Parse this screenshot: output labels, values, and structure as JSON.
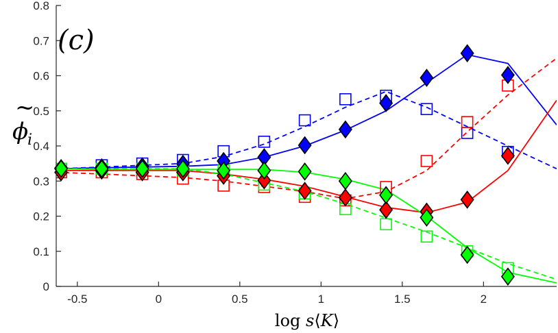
{
  "chart_data": {
    "type": "line",
    "title": "",
    "panel_label": "(c)",
    "xlabel": "log s⟨K⟩",
    "xlabel_parts": {
      "prefix": "log ",
      "s": "s",
      "open": "⟨",
      "K": "K",
      "close": "⟩"
    },
    "ylabel": "φ̃_i",
    "ylabel_parts": {
      "tilde": "~",
      "phi": "ϕ",
      "sub": "i"
    },
    "xlim": [
      -0.63,
      2.45
    ],
    "ylim": [
      0,
      0.8
    ],
    "xticks": [
      -0.5,
      0,
      0.5,
      1,
      1.5,
      2
    ],
    "xtick_labels": [
      "-0.5",
      "0",
      "0.5",
      "1",
      "1.5",
      "2"
    ],
    "yticks": [
      0,
      0.1,
      0.2,
      0.3,
      0.4,
      0.5,
      0.6,
      0.7,
      0.8
    ],
    "ytick_labels": [
      "0",
      "0.1",
      "0.2",
      "0.3",
      "0.4",
      "0.5",
      "0.6",
      "0.7",
      "0.8"
    ],
    "grid": false,
    "colors": {
      "blue": "#0000ff",
      "red": "#ff0000",
      "green": "#00ff00",
      "blue_marker": "#0000ff",
      "red_marker": "#ff0000",
      "green_marker": "#00ff00"
    },
    "series": [
      {
        "name": "blue solid",
        "color": "blue",
        "style": "solid",
        "x": [
          -0.63,
          -0.35,
          -0.1,
          0.15,
          0.4,
          0.65,
          0.9,
          1.15,
          1.4,
          1.65,
          1.9,
          2.15,
          2.45
        ],
        "y": [
          0.335,
          0.338,
          0.34,
          0.342,
          0.347,
          0.368,
          0.4,
          0.445,
          0.5,
          0.58,
          0.66,
          0.635,
          0.46
        ]
      },
      {
        "name": "blue dashed",
        "color": "blue",
        "style": "dashed",
        "x": [
          -0.63,
          -0.35,
          -0.1,
          0.15,
          0.4,
          0.65,
          0.9,
          1.15,
          1.4,
          1.65,
          1.9,
          2.15,
          2.45
        ],
        "y": [
          0.335,
          0.34,
          0.345,
          0.35,
          0.37,
          0.405,
          0.455,
          0.51,
          0.555,
          0.51,
          0.455,
          0.4,
          0.335
        ]
      },
      {
        "name": "red solid",
        "color": "red",
        "style": "solid",
        "x": [
          -0.63,
          -0.35,
          -0.1,
          0.15,
          0.4,
          0.65,
          0.9,
          1.15,
          1.4,
          1.65,
          1.9,
          2.15,
          2.45
        ],
        "y": [
          0.33,
          0.33,
          0.33,
          0.33,
          0.32,
          0.305,
          0.285,
          0.255,
          0.225,
          0.21,
          0.24,
          0.33,
          0.53
        ]
      },
      {
        "name": "red dashed",
        "color": "red",
        "style": "dashed",
        "x": [
          -0.63,
          -0.35,
          -0.1,
          0.15,
          0.4,
          0.65,
          0.9,
          1.15,
          1.4,
          1.65,
          1.9,
          2.15,
          2.45
        ],
        "y": [
          0.325,
          0.32,
          0.315,
          0.31,
          0.3,
          0.285,
          0.27,
          0.25,
          0.27,
          0.33,
          0.44,
          0.545,
          0.65
        ]
      },
      {
        "name": "green solid",
        "color": "green",
        "style": "solid",
        "x": [
          -0.63,
          -0.35,
          -0.1,
          0.15,
          0.4,
          0.65,
          0.9,
          1.15,
          1.4,
          1.65,
          1.9,
          2.15,
          2.45
        ],
        "y": [
          0.335,
          0.333,
          0.333,
          0.333,
          0.333,
          0.333,
          0.325,
          0.305,
          0.275,
          0.2,
          0.11,
          0.04,
          0.01
        ]
      },
      {
        "name": "green dashed",
        "color": "green",
        "style": "dashed",
        "x": [
          -0.63,
          -0.35,
          -0.1,
          0.15,
          0.4,
          0.65,
          0.9,
          1.15,
          1.4,
          1.65,
          1.9,
          2.15,
          2.45
        ],
        "y": [
          0.335,
          0.335,
          0.335,
          0.335,
          0.32,
          0.295,
          0.27,
          0.235,
          0.195,
          0.155,
          0.11,
          0.065,
          0.02
        ]
      }
    ],
    "markers": {
      "diamonds": [
        {
          "color": "blue",
          "x": [
            -0.6,
            -0.35,
            -0.1,
            0.15,
            0.4,
            0.65,
            0.9,
            1.15,
            1.4,
            1.65,
            1.9,
            2.15
          ],
          "y": [
            0.337,
            0.339,
            0.342,
            0.349,
            0.357,
            0.368,
            0.402,
            0.447,
            0.522,
            0.594,
            0.664,
            0.602
          ]
        },
        {
          "color": "red",
          "x": [
            -0.6,
            -0.35,
            -0.1,
            0.15,
            0.4,
            0.65,
            0.9,
            1.15,
            1.4,
            1.65,
            1.9,
            2.15
          ],
          "y": [
            0.325,
            0.33,
            0.325,
            0.325,
            0.315,
            0.302,
            0.272,
            0.253,
            0.218,
            0.213,
            0.247,
            0.372
          ]
        },
        {
          "color": "green",
          "x": [
            -0.6,
            -0.35,
            -0.1,
            0.15,
            0.4,
            0.65,
            0.9,
            1.15,
            1.4,
            1.65,
            1.9,
            2.15
          ],
          "y": [
            0.335,
            0.335,
            0.335,
            0.335,
            0.33,
            0.33,
            0.327,
            0.3,
            0.26,
            0.196,
            0.09,
            0.028
          ]
        }
      ],
      "squares": [
        {
          "color": "blue",
          "x": [
            -0.6,
            -0.35,
            -0.1,
            0.15,
            0.4,
            0.65,
            0.9,
            1.15,
            1.4,
            1.65,
            1.9,
            2.15
          ],
          "y": [
            0.335,
            0.345,
            0.35,
            0.36,
            0.385,
            0.412,
            0.473,
            0.533,
            0.543,
            0.505,
            0.437,
            0.383
          ]
        },
        {
          "color": "red",
          "x": [
            -0.6,
            -0.35,
            -0.1,
            0.15,
            0.4,
            0.65,
            0.9,
            1.15,
            1.4,
            1.65,
            1.9,
            2.15
          ],
          "y": [
            0.325,
            0.325,
            0.32,
            0.307,
            0.287,
            0.283,
            0.255,
            0.245,
            0.283,
            0.357,
            0.468,
            0.572
          ]
        },
        {
          "color": "green",
          "x": [
            -0.6,
            -0.35,
            -0.1,
            0.15,
            0.4,
            0.65,
            0.9,
            1.15,
            1.4,
            1.65,
            1.9,
            2.15
          ],
          "y": [
            0.335,
            0.335,
            0.335,
            0.33,
            0.33,
            0.29,
            0.265,
            0.22,
            0.177,
            0.142,
            0.1,
            0.052
          ]
        }
      ]
    }
  }
}
